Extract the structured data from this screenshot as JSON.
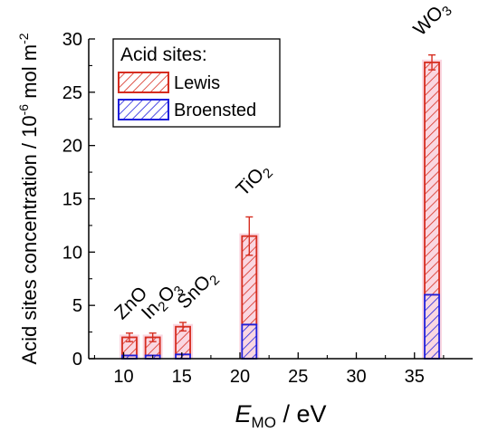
{
  "chart_data": {
    "type": "bar",
    "stacked": true,
    "xlabel_main": "E",
    "xlabel_sub": "MO",
    "xlabel_tail": " / eV",
    "ylabel_main": "Acid sites concentration / 10",
    "ylabel_sup": "-6",
    "ylabel_tail": " mol m",
    "ylabel_sup2": "-2",
    "xlim": [
      7,
      40
    ],
    "ylim": [
      0,
      30
    ],
    "xticks": [
      10,
      15,
      20,
      25,
      30,
      35
    ],
    "yticks": [
      0,
      5,
      10,
      15,
      20,
      25,
      30
    ],
    "grid": false,
    "legend": {
      "title": "Acid sites:",
      "placement": "top-left",
      "entries": [
        "Lewis",
        "Broensted"
      ]
    },
    "colors": {
      "lewis": "#d62d20",
      "broensted": "#1f1fdc",
      "halo": "#f5b7c9",
      "axis": "#000000"
    },
    "materials": [
      {
        "name": "ZnO",
        "parts": [
          {
            "t": "ZnO"
          }
        ],
        "x": 10.5,
        "broensted": 0.3,
        "total": 2.0,
        "err": 0.4
      },
      {
        "name": "In2O3",
        "parts": [
          {
            "t": "In"
          },
          {
            "t": "2",
            "sub": true
          },
          {
            "t": "O"
          },
          {
            "t": "3",
            "sub": true
          }
        ],
        "x": 12.5,
        "broensted": 0.3,
        "total": 2.0,
        "err": 0.4
      },
      {
        "name": "SnO2",
        "parts": [
          {
            "t": "SnO"
          },
          {
            "t": "2",
            "sub": true
          }
        ],
        "x": 15.1,
        "broensted": 0.4,
        "total": 3.0,
        "err": 0.4
      },
      {
        "name": "TiO2",
        "parts": [
          {
            "t": "TiO"
          },
          {
            "t": "2",
            "sub": true
          }
        ],
        "x": 20.8,
        "broensted": 3.2,
        "total": 11.5,
        "err": 1.8
      },
      {
        "name": "WO3",
        "parts": [
          {
            "t": "WO"
          },
          {
            "t": "3",
            "sub": true
          }
        ],
        "x": 36.5,
        "broensted": 6.0,
        "total": 27.8,
        "err": 0.7
      }
    ]
  }
}
